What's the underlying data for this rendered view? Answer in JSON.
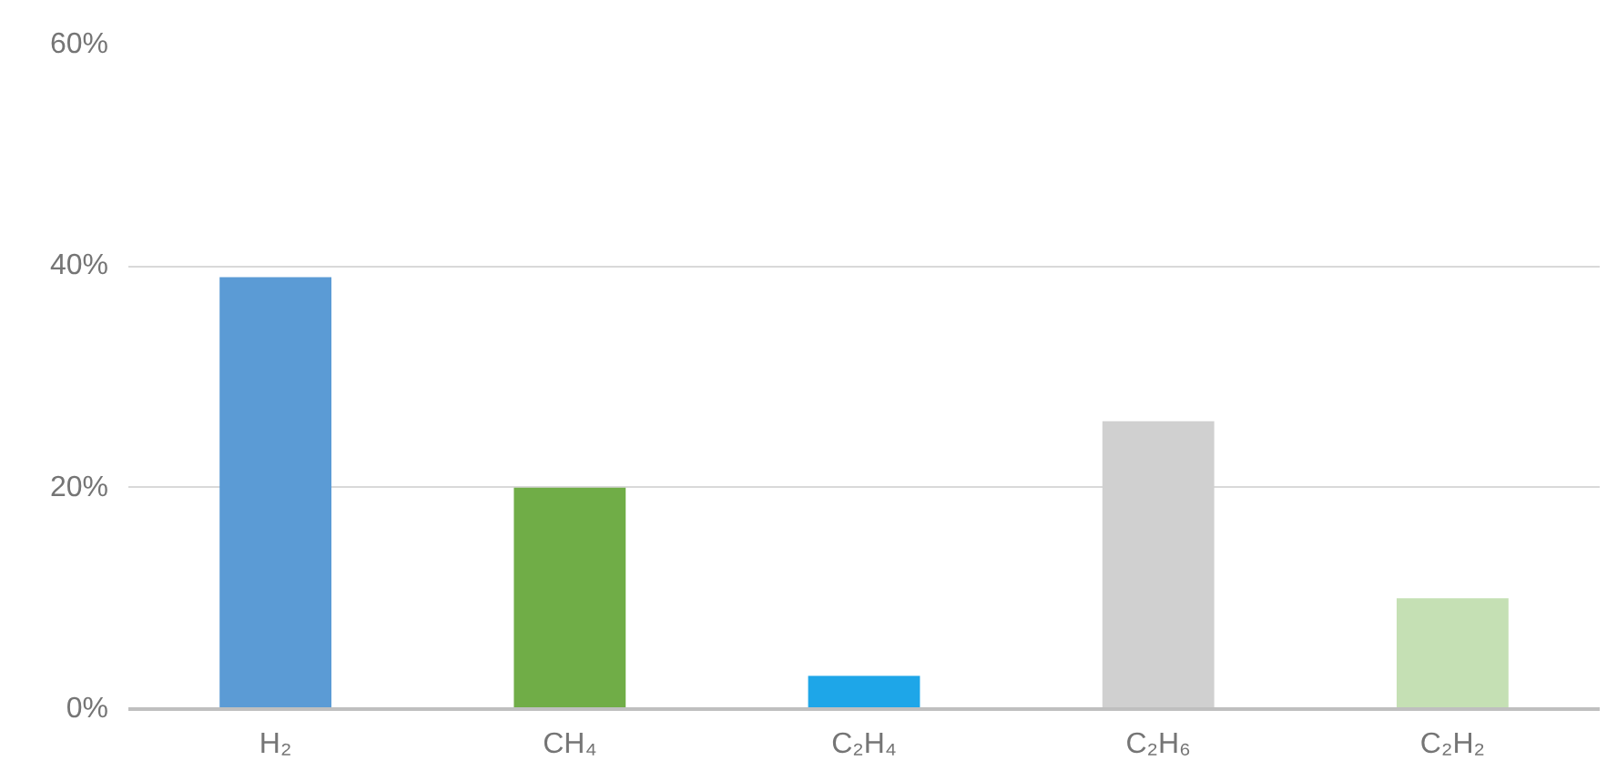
{
  "chart_data": {
    "type": "bar",
    "categories": [
      "H₂",
      "CH₄",
      "C₂H₄",
      "C₂H₆",
      "C₂H₂"
    ],
    "values": [
      39,
      20,
      3,
      26,
      10
    ],
    "colors": [
      "#5b9bd5",
      "#70ad47",
      "#1ea6e8",
      "#d0d0d0",
      "#c5e0b4"
    ],
    "ylim": [
      0,
      60
    ],
    "yticks": [
      {
        "value": 0,
        "label": "0%"
      },
      {
        "value": 20,
        "label": "20%"
      },
      {
        "value": 40,
        "label": "40%"
      },
      {
        "value": 60,
        "label": "60%"
      }
    ],
    "grid": "y"
  }
}
